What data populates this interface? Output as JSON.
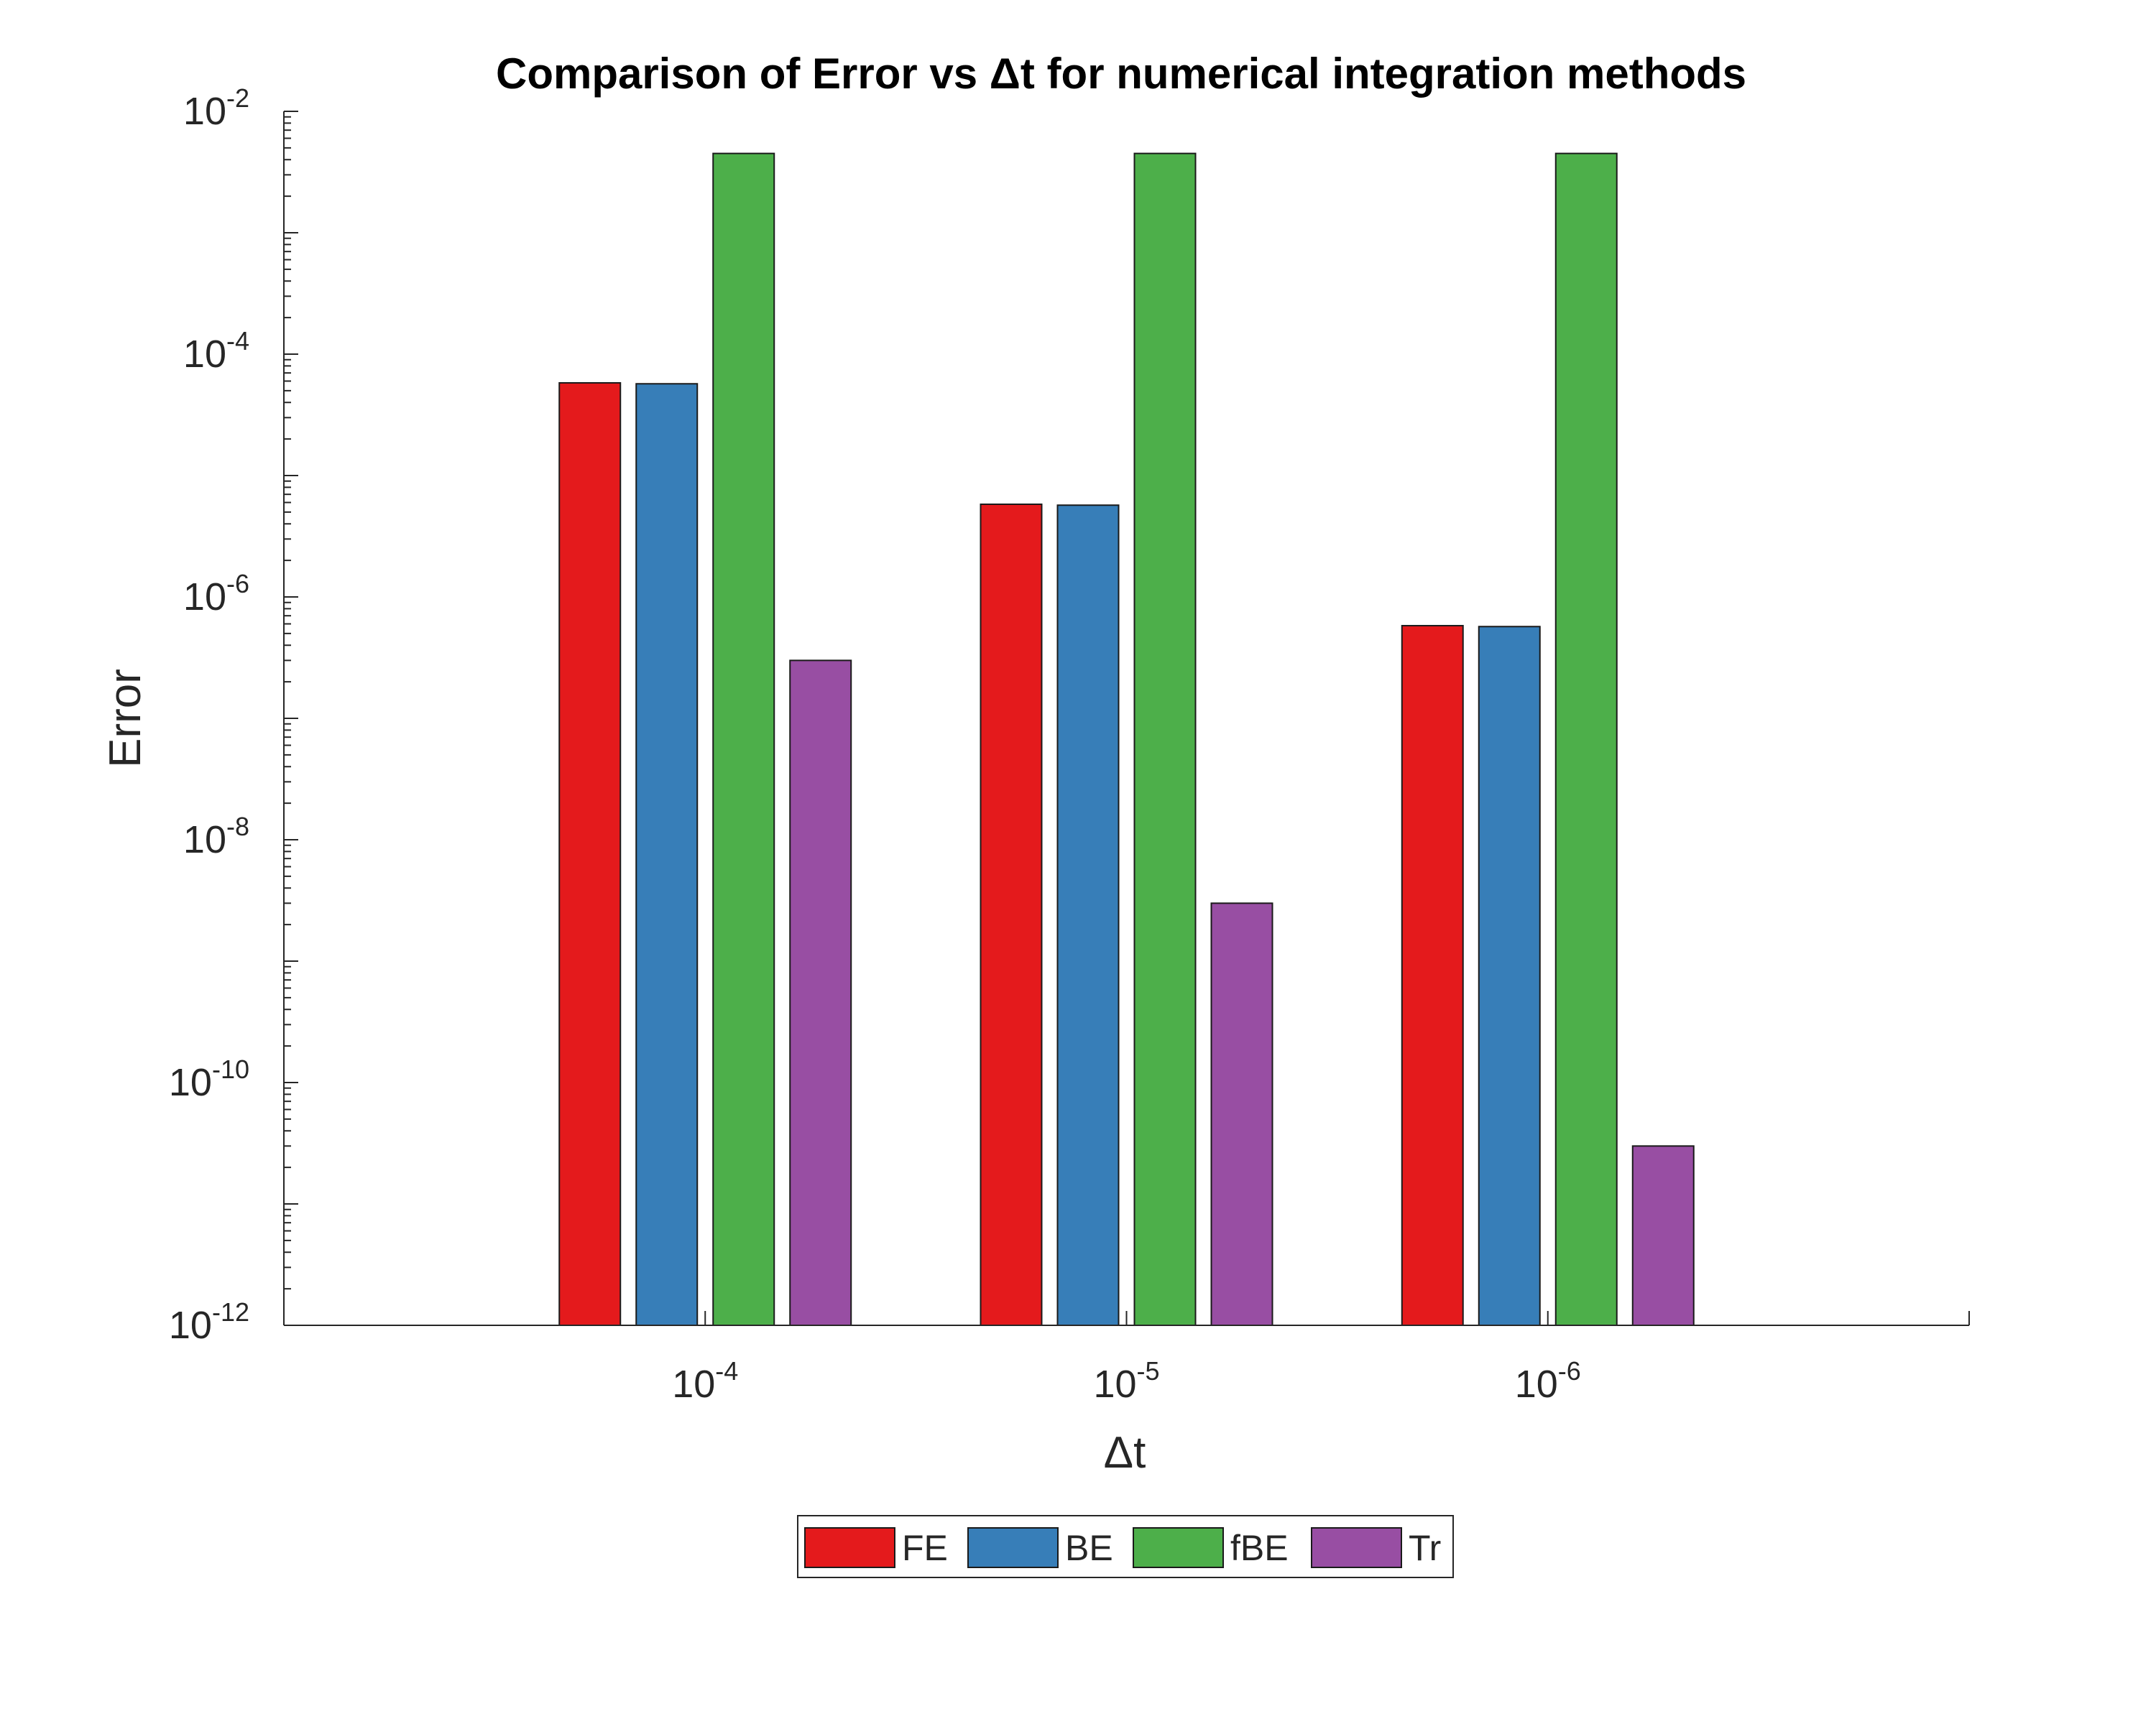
{
  "chart_data": {
    "type": "bar",
    "title": "Comparison of Error vs Δt for numerical integration methods",
    "xlabel": "Δt",
    "ylabel": "Error",
    "yscale": "log",
    "ylim": [
      1e-12,
      0.01
    ],
    "categories": [
      {
        "base": "10",
        "exp": "-4"
      },
      {
        "base": "10",
        "exp": "-5"
      },
      {
        "base": "10",
        "exp": "-6"
      }
    ],
    "yticks": [
      {
        "base": "10",
        "exp": "-12",
        "value": 1e-12
      },
      {
        "base": "10",
        "exp": "-10",
        "value": 1e-10
      },
      {
        "base": "10",
        "exp": "-8",
        "value": 1e-08
      },
      {
        "base": "10",
        "exp": "-6",
        "value": 1e-06
      },
      {
        "base": "10",
        "exp": "-4",
        "value": 0.0001
      },
      {
        "base": "10",
        "exp": "-2",
        "value": 0.01
      }
    ],
    "series": [
      {
        "name": "FE",
        "color": "#e41a1c",
        "values": [
          5.8e-05,
          5.8e-06,
          5.8e-07
        ]
      },
      {
        "name": "BE",
        "color": "#377eb8",
        "values": [
          5.7e-05,
          5.7e-06,
          5.7e-07
        ]
      },
      {
        "name": "fBE",
        "color": "#4daf4a",
        "values": [
          0.0045,
          0.0045,
          0.0045
        ]
      },
      {
        "name": "Tr",
        "color": "#984ea3",
        "values": [
          3e-07,
          3e-09,
          3e-11
        ]
      }
    ],
    "legend": {
      "position": "bottom-center",
      "orientation": "horizontal"
    },
    "grid": false
  }
}
